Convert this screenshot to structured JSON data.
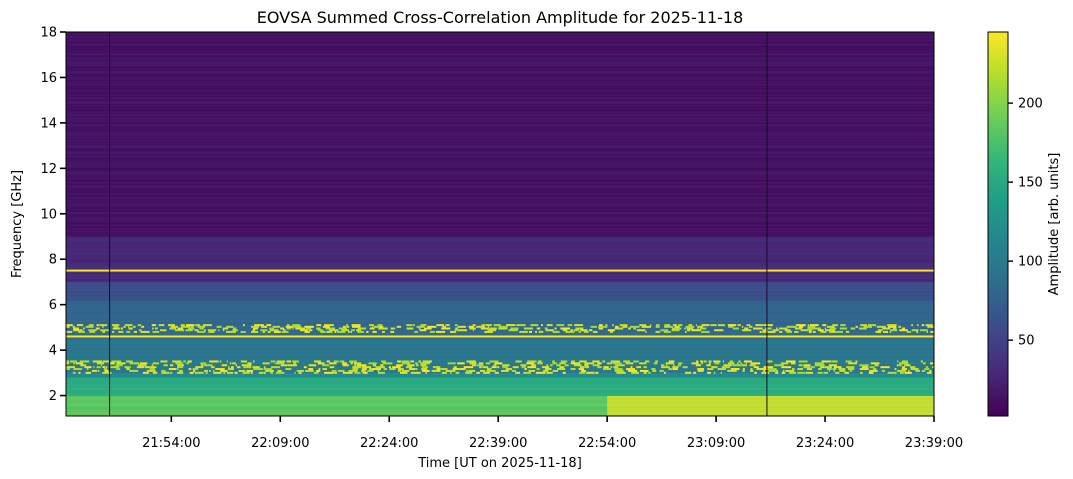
{
  "chart_data": {
    "type": "heatmap",
    "title": "EOVSA Summed Cross-Correlation Amplitude for 2025-11-18",
    "xlabel": "Time [UT on 2025-11-18]",
    "ylabel": "Frequency [GHz]",
    "colorbar_label": "Amplitude [arb. units]",
    "colormap": "viridis",
    "colors": [
      "#440154",
      "#482878",
      "#3e4989",
      "#31688e",
      "#26828e",
      "#1f9e89",
      "#35b779",
      "#6ece58",
      "#b5de2b",
      "#fde725"
    ],
    "x_ticks": [
      "21:54:00",
      "22:09:00",
      "22:24:00",
      "22:39:00",
      "22:54:00",
      "23:09:00",
      "23:24:00",
      "23:39:00"
    ],
    "x_range": [
      "21:39:30",
      "23:39:00"
    ],
    "y_ticks": [
      2,
      4,
      6,
      8,
      10,
      12,
      14,
      16,
      18
    ],
    "y_range": [
      1.1,
      18
    ],
    "colorbar_ticks": [
      50,
      100,
      150,
      200
    ],
    "colorbar_range": [
      2,
      245
    ],
    "features": [
      {
        "kind": "band",
        "freq_range": [
          1.1,
          2.0
        ],
        "level": "saturated, increasing after 22:54"
      },
      {
        "kind": "band",
        "freq_range": [
          2.0,
          2.8
        ],
        "level": "high"
      },
      {
        "kind": "rfi_band",
        "freq_range": [
          3.0,
          3.5
        ],
        "level": "saturated, intermittent"
      },
      {
        "kind": "rfi_line",
        "freq": 4.6,
        "level": "saturated"
      },
      {
        "kind": "rfi_band",
        "freq_range": [
          4.8,
          5.1
        ],
        "level": "saturated, intermittent"
      },
      {
        "kind": "rfi_line",
        "freq": 7.5,
        "level": "saturated"
      },
      {
        "kind": "dropout",
        "time": "21:45:30"
      },
      {
        "kind": "dropout",
        "time": "23:16:00"
      }
    ]
  }
}
